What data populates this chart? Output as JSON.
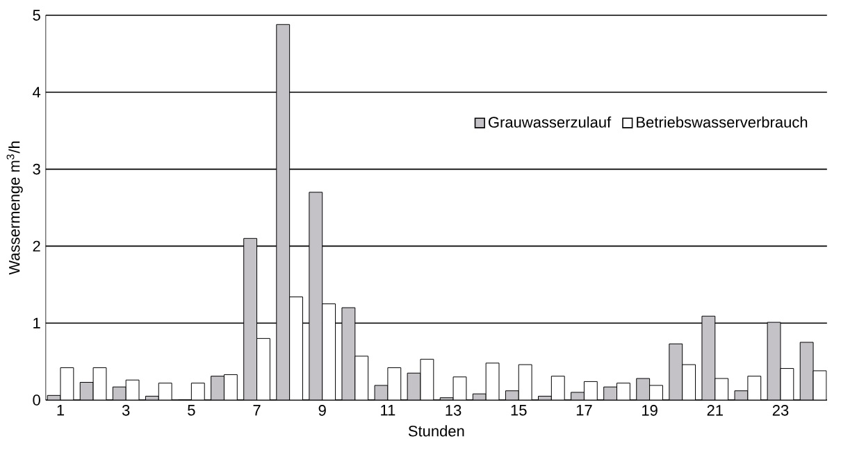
{
  "chart_data": {
    "type": "bar",
    "xlabel": "Stunden",
    "ylabel": "Wassermenge m$^{3}$/h",
    "categories": [
      "1",
      null,
      "3",
      null,
      "5",
      null,
      "7",
      null,
      "9",
      null,
      "11",
      null,
      "13",
      null,
      "15",
      null,
      "17",
      null,
      "19",
      null,
      "21",
      null,
      "23",
      null
    ],
    "series": [
      {
        "name": "Grauwasserzulauf",
        "color": "#c4c2c6",
        "values": [
          0.06,
          0.23,
          0.17,
          0.05,
          0,
          0.31,
          2.1,
          4.88,
          2.7,
          1.2,
          0.19,
          0.35,
          0.03,
          0.08,
          0.12,
          0.05,
          0.1,
          0.17,
          0.28,
          0.73,
          1.09,
          0.12,
          1.01,
          0.75
        ]
      },
      {
        "name": "Betriebswasserverbrauch",
        "color": "#ffffff",
        "values": [
          0.42,
          0.42,
          0.26,
          0.22,
          0.22,
          0.33,
          0.8,
          1.34,
          1.25,
          0.57,
          0.42,
          0.53,
          0.3,
          0.48,
          0.46,
          0.31,
          0.24,
          0.22,
          0.19,
          0.46,
          0.28,
          0.31,
          0.41,
          0.38
        ]
      }
    ],
    "ylim": [
      0,
      5
    ],
    "yticks": [
      0,
      1,
      2,
      3,
      4,
      5
    ],
    "grid": "y",
    "legend": "top right"
  }
}
